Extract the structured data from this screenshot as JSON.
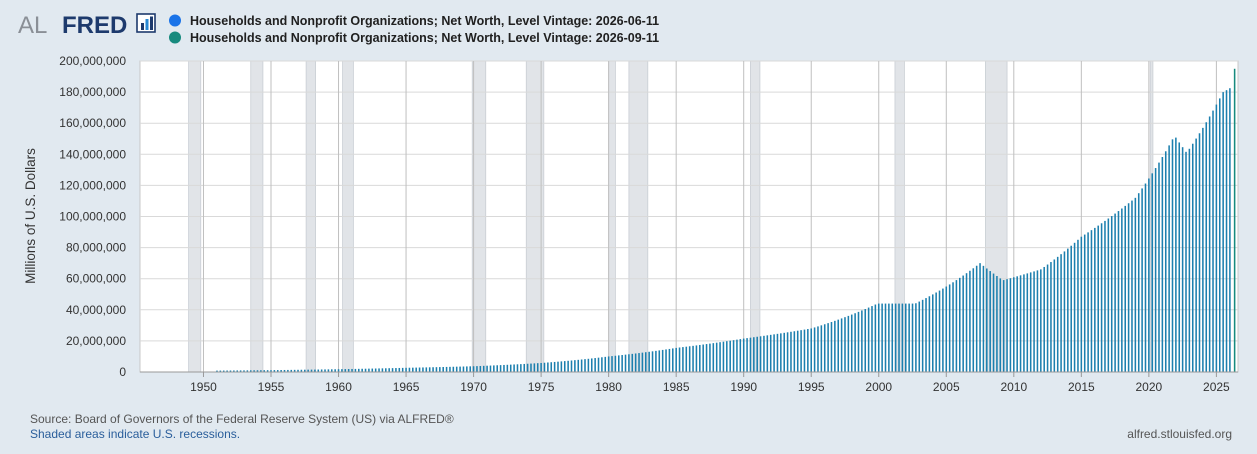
{
  "brand": {
    "left": "AL",
    "right": "FRED"
  },
  "legend": [
    {
      "label": "Households and Nonprofit Organizations; Net Worth, Level Vintage: 2026-06-11",
      "color": "#1a73e8"
    },
    {
      "label": "Households and Nonprofit Organizations; Net Worth, Level Vintage: 2026-09-11",
      "color": "#178a7e"
    }
  ],
  "footer": {
    "source": "Source: Board of Governors of the Federal Reserve System (US) via ALFRED®",
    "recessions": "Shaded areas indicate U.S. recessions.",
    "site": "alfred.stlouisfed.org"
  },
  "colors": {
    "series": "#1c7fae",
    "recession": "#e1e4e8",
    "grid": "#d9d9d9",
    "frame_bg": "#ffffff"
  },
  "chart_data": {
    "type": "bar",
    "ylabel": "Millions of U.S. Dollars",
    "ylim": [
      0,
      200000000
    ],
    "yticks": [
      0,
      20000000,
      40000000,
      60000000,
      80000000,
      100000000,
      120000000,
      140000000,
      160000000,
      180000000,
      200000000
    ],
    "ytick_labels": [
      "0",
      "20,000,000",
      "40,000,000",
      "60,000,000",
      "80,000,000",
      "100,000,000",
      "120,000,000",
      "140,000,000",
      "160,000,000",
      "180,000,000",
      "200,000,000"
    ],
    "xlim": [
      1945.3,
      2026.6
    ],
    "xticks": [
      1950,
      1955,
      1960,
      1965,
      1970,
      1975,
      1980,
      1985,
      1990,
      1995,
      2000,
      2005,
      2010,
      2015,
      2020,
      2025
    ],
    "xtick_labels": [
      "1950",
      "1955",
      "1960",
      "1965",
      "1970",
      "1975",
      "1980",
      "1985",
      "1990",
      "1995",
      "2000",
      "2005",
      "2010",
      "2015",
      "2020",
      "2025"
    ],
    "grid": true,
    "frequency": "quarterly",
    "recessions": [
      [
        1948.9,
        1949.8
      ],
      [
        1953.5,
        1954.4
      ],
      [
        1957.6,
        1958.3
      ],
      [
        1960.3,
        1961.1
      ],
      [
        1969.9,
        1970.9
      ],
      [
        1973.9,
        1975.2
      ],
      [
        1980.0,
        1980.5
      ],
      [
        1981.5,
        1982.9
      ],
      [
        1990.5,
        1991.2
      ],
      [
        2001.2,
        2001.9
      ],
      [
        2007.9,
        2009.5
      ],
      [
        2020.1,
        2020.3
      ]
    ],
    "series": [
      {
        "name": "Households and Nonprofit Organizations; Net Worth, Level Vintage: 2026-06-11",
        "anchors": [
          [
            1955.0,
            1200000
          ],
          [
            1960.0,
            1800000
          ],
          [
            1965.0,
            2700000
          ],
          [
            1970.0,
            3700000
          ],
          [
            1975.0,
            5800000
          ],
          [
            1980.0,
            10000000
          ],
          [
            1985.0,
            15500000
          ],
          [
            1990.0,
            21500000
          ],
          [
            1995.0,
            28000000
          ],
          [
            1999.9,
            44000000
          ],
          [
            2002.7,
            44000000
          ],
          [
            2007.5,
            70000000
          ],
          [
            2009.2,
            59000000
          ],
          [
            2012.0,
            66000000
          ],
          [
            2015.0,
            87000000
          ],
          [
            2019.0,
            112000000
          ],
          [
            2021.9,
            152000000
          ],
          [
            2022.8,
            141000000
          ],
          [
            2024.0,
            157000000
          ],
          [
            2025.5,
            180000000
          ],
          [
            2026.1,
            183000000
          ]
        ]
      },
      {
        "name": "Households and Nonprofit Organizations; Net Worth, Level Vintage: 2026-09-11",
        "points": [
          [
            2026.35,
            195000000
          ]
        ]
      }
    ]
  }
}
